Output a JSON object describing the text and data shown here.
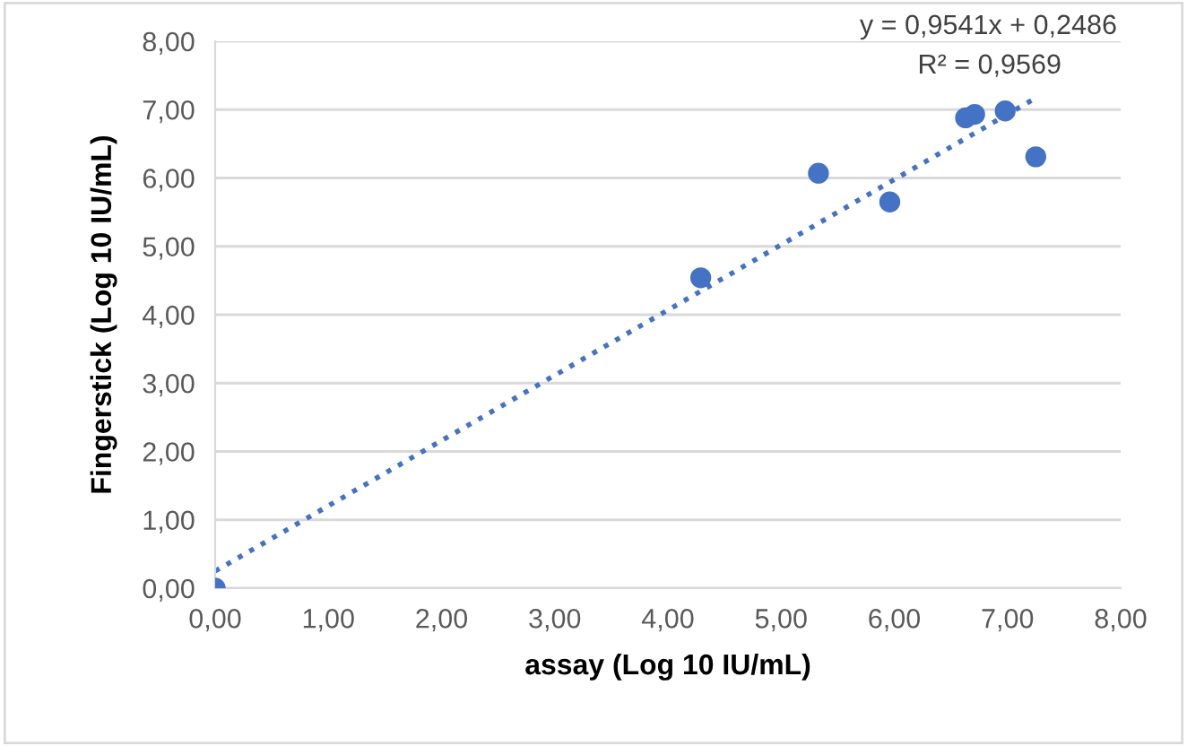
{
  "chart_data": {
    "type": "scatter",
    "xlabel": "assay (Log 10 IU/mL)",
    "ylabel": "Fingerstick (Log 10 IU/mL)",
    "series": [
      {
        "color": "#4472c4",
        "x": [
          0.0,
          4.29,
          5.33,
          5.96,
          6.63,
          6.71,
          6.98,
          7.25
        ],
        "values": [
          0.0,
          4.54,
          6.07,
          5.65,
          6.88,
          6.93,
          6.98,
          6.31
        ]
      },
      {
        "type": "line",
        "color": "#4472c4",
        "line_style": "dotted",
        "marker": "none",
        "x": [
          0.0,
          7.25
        ],
        "values": [
          0.25,
          7.17
        ]
      }
    ],
    "annotations": [
      "y = 0,9541x + 0,2486",
      "R² = 0,9569"
    ],
    "xlim": [
      0,
      8
    ],
    "ylim": [
      0,
      8
    ],
    "xticks": [
      {
        "value": 0,
        "label": "0,00"
      },
      {
        "value": 1,
        "label": "1,00"
      },
      {
        "value": 2,
        "label": "2,00"
      },
      {
        "value": 3,
        "label": "3,00"
      },
      {
        "value": 4,
        "label": "4,00"
      },
      {
        "value": 5,
        "label": "5,00"
      },
      {
        "value": 6,
        "label": "6,00"
      },
      {
        "value": 7,
        "label": "7,00"
      },
      {
        "value": 8,
        "label": "8,00"
      }
    ],
    "yticks": [
      {
        "value": 0,
        "label": "0,00"
      },
      {
        "value": 1,
        "label": "1,00"
      },
      {
        "value": 2,
        "label": "2,00"
      },
      {
        "value": 3,
        "label": "3,00"
      },
      {
        "value": 4,
        "label": "4,00"
      },
      {
        "value": 5,
        "label": "5,00"
      },
      {
        "value": 6,
        "label": "6,00"
      },
      {
        "value": 7,
        "label": "7,00"
      },
      {
        "value": 8,
        "label": "8,00"
      }
    ],
    "grid": "y",
    "marker": "circle",
    "legend": false
  }
}
